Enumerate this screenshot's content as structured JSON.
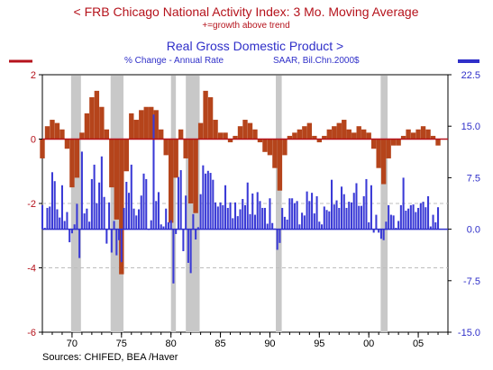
{
  "chart_data": {
    "type": "bar",
    "title_left": "<  FRB Chicago National Activity Index: 3 Mo. Moving Average",
    "subtitle_left": "+=growth above trend",
    "title_right": "Real Gross Domestic Product  >",
    "subtitle_right_1": "% Change - Annual Rate",
    "subtitle_right_2": "SAAR, Bil.Chn.2000$",
    "source": "Sources:  CHIFED, BEA /Haver",
    "left_axis": {
      "ticks": [
        "2",
        "0",
        "-2",
        "-4",
        "-6"
      ],
      "values": [
        2,
        0,
        -2,
        -4,
        -6
      ],
      "ylim": [
        -6,
        2
      ]
    },
    "right_axis": {
      "ticks": [
        "22.5",
        "15.0",
        "7.5",
        "0.0",
        "-7.5",
        "-15.0"
      ],
      "values": [
        22.5,
        15.0,
        7.5,
        0.0,
        -7.5,
        -15.0
      ],
      "ylim": [
        -15,
        22.5
      ]
    },
    "x_axis": {
      "ticks": [
        "70",
        "75",
        "80",
        "85",
        "90",
        "95",
        "00",
        "05"
      ],
      "values": [
        1970,
        1975,
        1980,
        1985,
        1990,
        1995,
        2000,
        2005
      ],
      "xlim": [
        1967,
        2008
      ]
    },
    "recessions": [
      [
        1969.9,
        1970.9
      ],
      [
        1973.9,
        1975.2
      ],
      [
        1980.0,
        1980.5
      ],
      [
        1981.5,
        1982.9
      ],
      [
        1990.6,
        1991.2
      ],
      [
        2001.2,
        2001.9
      ]
    ],
    "series": [
      {
        "name": "FRB Chicago National Activity Index: 3 Mo. Moving Average",
        "axis": "left",
        "color": "#b5441b",
        "x": [
          1967.0,
          1967.5,
          1968.0,
          1968.5,
          1969.0,
          1969.5,
          1970.0,
          1970.5,
          1971.0,
          1971.5,
          1972.0,
          1972.5,
          1973.0,
          1973.5,
          1974.0,
          1974.5,
          1975.0,
          1975.5,
          1976.0,
          1976.5,
          1977.0,
          1977.5,
          1978.0,
          1978.5,
          1979.0,
          1979.5,
          1980.0,
          1980.5,
          1981.0,
          1981.5,
          1982.0,
          1982.5,
          1983.0,
          1983.5,
          1984.0,
          1984.5,
          1985.0,
          1985.5,
          1986.0,
          1986.5,
          1987.0,
          1987.5,
          1988.0,
          1988.5,
          1989.0,
          1989.5,
          1990.0,
          1990.5,
          1991.0,
          1991.5,
          1992.0,
          1992.5,
          1993.0,
          1993.5,
          1994.0,
          1994.5,
          1995.0,
          1995.5,
          1996.0,
          1996.5,
          1997.0,
          1997.5,
          1998.0,
          1998.5,
          1999.0,
          1999.5,
          2000.0,
          2000.5,
          2001.0,
          2001.5,
          2002.0,
          2002.5,
          2003.0,
          2003.5,
          2004.0,
          2004.5,
          2005.0,
          2005.5,
          2006.0,
          2006.5,
          2007.0
        ],
        "values": [
          -0.6,
          0.4,
          0.6,
          0.5,
          0.3,
          -0.3,
          -1.5,
          -1.2,
          0.2,
          0.8,
          1.3,
          1.5,
          1.0,
          0.3,
          -1.5,
          -2.5,
          -4.2,
          -1.0,
          0.8,
          0.6,
          0.9,
          1.0,
          1.0,
          0.9,
          0.3,
          -0.5,
          -2.6,
          -1.2,
          0.3,
          -0.6,
          -2.0,
          -2.3,
          0.5,
          1.5,
          1.3,
          0.6,
          0.2,
          0.2,
          -0.1,
          0.1,
          0.4,
          0.6,
          0.5,
          0.3,
          -0.1,
          -0.4,
          -0.5,
          -0.9,
          -1.6,
          -0.5,
          0.1,
          0.2,
          0.3,
          0.4,
          0.5,
          0.1,
          -0.1,
          0.1,
          0.3,
          0.4,
          0.5,
          0.6,
          0.3,
          0.2,
          0.4,
          0.3,
          0.2,
          -0.3,
          -0.9,
          -1.4,
          -0.6,
          -0.2,
          -0.2,
          0.1,
          0.3,
          0.2,
          0.3,
          0.4,
          0.3,
          0.1,
          -0.2
        ]
      },
      {
        "name": "Real Gross Domestic Product",
        "axis": "right",
        "color": "#3a3ad6",
        "x": [
          1967.0,
          1967.25,
          1967.5,
          1967.75,
          1968.0,
          1968.25,
          1968.5,
          1968.75,
          1969.0,
          1969.25,
          1969.5,
          1969.75,
          1970.0,
          1970.25,
          1970.5,
          1970.75,
          1971.0,
          1971.25,
          1971.5,
          1971.75,
          1972.0,
          1972.25,
          1972.5,
          1972.75,
          1973.0,
          1973.25,
          1973.5,
          1973.75,
          1974.0,
          1974.25,
          1974.5,
          1974.75,
          1975.0,
          1975.25,
          1975.5,
          1975.75,
          1976.0,
          1976.25,
          1976.5,
          1976.75,
          1977.0,
          1977.25,
          1977.5,
          1977.75,
          1978.0,
          1978.25,
          1978.5,
          1978.75,
          1979.0,
          1979.25,
          1979.5,
          1979.75,
          1980.0,
          1980.25,
          1980.5,
          1980.75,
          1981.0,
          1981.25,
          1981.5,
          1981.75,
          1982.0,
          1982.25,
          1982.5,
          1982.75,
          1983.0,
          1983.25,
          1983.5,
          1983.75,
          1984.0,
          1984.25,
          1984.5,
          1984.75,
          1985.0,
          1985.25,
          1985.5,
          1985.75,
          1986.0,
          1986.25,
          1986.5,
          1986.75,
          1987.0,
          1987.25,
          1987.5,
          1987.75,
          1988.0,
          1988.25,
          1988.5,
          1988.75,
          1989.0,
          1989.25,
          1989.5,
          1989.75,
          1990.0,
          1990.25,
          1990.5,
          1990.75,
          1991.0,
          1991.25,
          1991.5,
          1991.75,
          1992.0,
          1992.25,
          1992.5,
          1992.75,
          1993.0,
          1993.25,
          1993.5,
          1993.75,
          1994.0,
          1994.25,
          1994.5,
          1994.75,
          1995.0,
          1995.25,
          1995.5,
          1995.75,
          1996.0,
          1996.25,
          1996.5,
          1996.75,
          1997.0,
          1997.25,
          1997.5,
          1997.75,
          1998.0,
          1998.25,
          1998.5,
          1998.75,
          1999.0,
          1999.25,
          1999.5,
          1999.75,
          2000.0,
          2000.25,
          2000.5,
          2000.75,
          2001.0,
          2001.25,
          2001.5,
          2001.75,
          2002.0,
          2002.25,
          2002.5,
          2002.75,
          2003.0,
          2003.25,
          2003.5,
          2003.75,
          2004.0,
          2004.25,
          2004.5,
          2004.75,
          2005.0,
          2005.25,
          2005.5,
          2005.75,
          2006.0,
          2006.25,
          2006.5,
          2006.75,
          2007.0
        ],
        "values": [
          3.5,
          0.2,
          3.1,
          3.3,
          8.3,
          7.0,
          2.9,
          1.7,
          6.4,
          1.2,
          2.5,
          -1.9,
          -0.6,
          0.7,
          3.7,
          -4.2,
          11.3,
          2.3,
          3.0,
          1.1,
          7.3,
          9.4,
          3.8,
          6.8,
          10.6,
          4.7,
          -2.1,
          3.9,
          -3.4,
          1.2,
          -3.8,
          -1.6,
          -4.8,
          3.1,
          6.9,
          5.3,
          9.4,
          3.0,
          2.0,
          2.9,
          4.9,
          8.1,
          7.3,
          0.0,
          1.3,
          16.7,
          4.1,
          5.4,
          0.7,
          0.4,
          3.0,
          1.0,
          1.3,
          -7.9,
          -0.7,
          7.6,
          8.6,
          -3.2,
          4.9,
          -4.9,
          -6.4,
          2.2,
          -1.5,
          0.3,
          5.1,
          9.3,
          8.1,
          8.5,
          8.2,
          7.2,
          3.9,
          3.3,
          3.9,
          3.5,
          6.4,
          3.1,
          3.9,
          1.6,
          3.9,
          1.9,
          2.9,
          4.4,
          3.5,
          6.8,
          2.2,
          5.2,
          2.1,
          5.4,
          4.1,
          3.1,
          3.1,
          0.8,
          4.5,
          0.9,
          0.1,
          -3.0,
          -2.0,
          3.1,
          1.8,
          1.4,
          4.5,
          4.5,
          3.8,
          4.1,
          0.7,
          2.4,
          2.0,
          5.5,
          4.1,
          5.3,
          2.3,
          4.8,
          1.1,
          0.7,
          3.3,
          2.8,
          2.6,
          7.2,
          3.6,
          4.2,
          3.1,
          6.2,
          5.1,
          3.1,
          4.0,
          3.9,
          5.3,
          6.7,
          3.4,
          3.4,
          4.8,
          7.3,
          1.0,
          6.4,
          -0.5,
          2.1,
          -0.5,
          -1.4,
          -1.6,
          1.1,
          3.5,
          2.1,
          2.0,
          0.2,
          1.2,
          3.5,
          7.5,
          2.7,
          3.0,
          3.5,
          3.6,
          2.5,
          3.1,
          3.8,
          4.0,
          3.2,
          4.8,
          0.4,
          2.1,
          1.0,
          3.2
        ]
      }
    ]
  }
}
